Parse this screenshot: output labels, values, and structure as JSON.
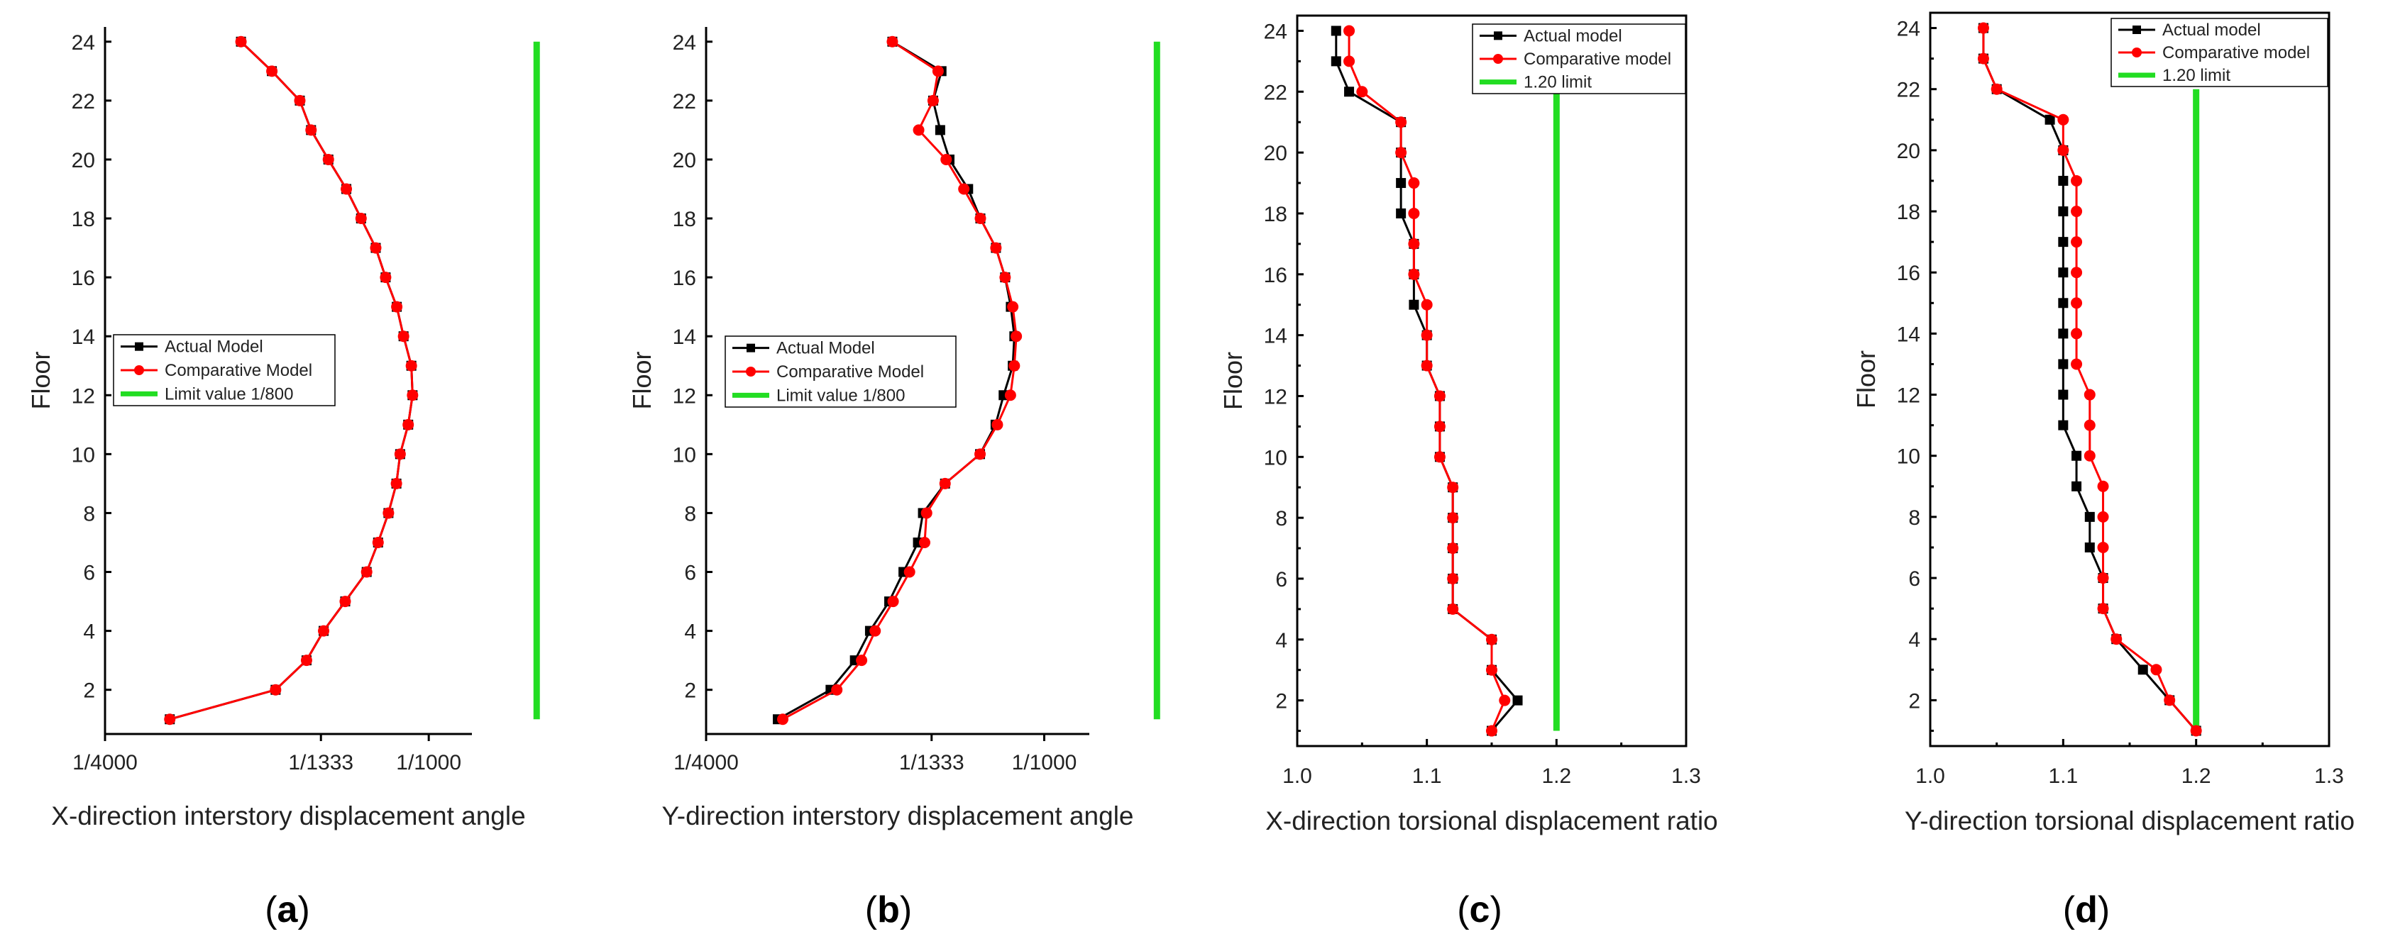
{
  "figure": {
    "captions": [
      "(a)",
      "(b)",
      "(c)",
      "(d)"
    ],
    "colors": {
      "actual": "#000000",
      "comparative": "#ff0000",
      "limit": "#22dd22"
    }
  },
  "chart_data": [
    {
      "type": "line",
      "caption": "(a)",
      "title": "",
      "xlabel": "X-direction interstory displacement angle",
      "ylabel": "Floor",
      "x_scale": "inverse-drift (1/N)",
      "xticks": [
        {
          "value": 4000,
          "label": "1/4000"
        },
        {
          "value": 1333,
          "label": "1/1333"
        },
        {
          "value": 1000,
          "label": "1/1000"
        }
      ],
      "xlim_inverse": [
        0.00025,
        0.0011
      ],
      "ylim": [
        0.5,
        24.5
      ],
      "yticks": [
        2,
        4,
        6,
        8,
        10,
        12,
        14,
        16,
        18,
        20,
        22,
        24
      ],
      "legend": {
        "position": "middle-left",
        "boxed": true,
        "entries": [
          "Actual Model",
          "Comparative Model",
          "Limit value 1/800"
        ]
      },
      "limit": {
        "label": "Limit value 1/800",
        "value_inverse": 800,
        "floors": [
          1,
          24
        ]
      },
      "series": [
        {
          "name": "Actual Model",
          "marker": "square",
          "floors": [
            1,
            2,
            3,
            4,
            5,
            6,
            7,
            8,
            9,
            10,
            11,
            12,
            13,
            14,
            15,
            16,
            17,
            18,
            19,
            20,
            21,
            22,
            23,
            24
          ],
          "values_inverse": [
            2500,
            1550,
            1395,
            1322,
            1240,
            1168,
            1133,
            1103,
            1081,
            1071,
            1050,
            1039,
            1042,
            1062,
            1080,
            1111,
            1140,
            1186,
            1236,
            1303,
            1375,
            1426,
            1571,
            1770
          ]
        },
        {
          "name": "Comparative Model",
          "marker": "circle",
          "floors": [
            1,
            2,
            3,
            4,
            5,
            6,
            7,
            8,
            9,
            10,
            11,
            12,
            13,
            14,
            15,
            16,
            17,
            18,
            19,
            20,
            21,
            22,
            23,
            24
          ],
          "values_inverse": [
            2500,
            1550,
            1395,
            1322,
            1240,
            1168,
            1133,
            1103,
            1081,
            1071,
            1050,
            1039,
            1042,
            1062,
            1080,
            1111,
            1140,
            1186,
            1236,
            1303,
            1375,
            1426,
            1571,
            1770
          ]
        }
      ]
    },
    {
      "type": "line",
      "caption": "(b)",
      "title": "",
      "xlabel": "Y-direction interstory displacement angle",
      "ylabel": "Floor",
      "x_scale": "inverse-drift (1/N)",
      "xticks": [
        {
          "value": 4000,
          "label": "1/4000"
        },
        {
          "value": 1333,
          "label": "1/1333"
        },
        {
          "value": 1000,
          "label": "1/1000"
        }
      ],
      "xlim_inverse": [
        0.00025,
        0.0011
      ],
      "ylim": [
        0.5,
        24.5
      ],
      "yticks": [
        2,
        4,
        6,
        8,
        10,
        12,
        14,
        16,
        18,
        20,
        22,
        24
      ],
      "legend": {
        "position": "middle-left",
        "boxed": true,
        "entries": [
          "Actual Model",
          "Comparative Model",
          "Limit value 1/800"
        ]
      },
      "limit": {
        "label": "Limit value 1/800",
        "value_inverse": 800,
        "floors": [
          1,
          24
        ]
      },
      "series": [
        {
          "name": "Actual Model",
          "marker": "square",
          "floors": [
            1,
            2,
            3,
            4,
            5,
            6,
            7,
            8,
            9,
            10,
            11,
            12,
            13,
            14,
            15,
            16,
            17,
            18,
            19,
            20,
            21,
            22,
            23,
            24
          ],
          "values_inverse": [
            2445,
            1901,
            1724,
            1630,
            1524,
            1454,
            1389,
            1368,
            1282,
            1166,
            1121,
            1099,
            1075,
            1071,
            1080,
            1095,
            1120,
            1165,
            1203,
            1266,
            1300,
            1327,
            1295,
            1508
          ]
        },
        {
          "name": "Comparative Model",
          "marker": "circle",
          "floors": [
            1,
            2,
            3,
            4,
            5,
            6,
            7,
            8,
            9,
            10,
            11,
            12,
            13,
            14,
            15,
            16,
            17,
            18,
            19,
            20,
            21,
            22,
            23,
            24
          ],
          "values_inverse": [
            2381,
            1852,
            1681,
            1600,
            1504,
            1426,
            1361,
            1353,
            1282,
            1166,
            1116,
            1081,
            1071,
            1066,
            1075,
            1095,
            1120,
            1165,
            1217,
            1278,
            1386,
            1327,
            1308,
            1508
          ]
        }
      ]
    },
    {
      "type": "line",
      "caption": "(c)",
      "title": "",
      "xlabel": "X-direction torsional displacement ratio",
      "ylabel": "Floor",
      "xlim": [
        1.0,
        1.3
      ],
      "xticks": [
        1.0,
        1.1,
        1.2,
        1.3
      ],
      "xtick_labels": [
        "1.0",
        "1.1",
        "1.2",
        "1.3"
      ],
      "ylim": [
        0.5,
        24.5
      ],
      "yticks": [
        2,
        4,
        6,
        8,
        10,
        12,
        14,
        16,
        18,
        20,
        22,
        24
      ],
      "legend": {
        "position": "top-right",
        "boxed": true,
        "entries": [
          "Actual model",
          "Comparative model",
          "1.20  limit"
        ]
      },
      "limit": {
        "label": "1.20  limit",
        "value": 1.2,
        "floors": [
          1,
          22
        ]
      },
      "series": [
        {
          "name": "Actual model",
          "marker": "square",
          "floors": [
            1,
            2,
            3,
            4,
            5,
            6,
            7,
            8,
            9,
            10,
            11,
            12,
            13,
            14,
            15,
            16,
            17,
            18,
            19,
            20,
            21,
            22,
            23,
            24
          ],
          "values": [
            1.15,
            1.17,
            1.15,
            1.15,
            1.12,
            1.12,
            1.12,
            1.12,
            1.12,
            1.11,
            1.11,
            1.11,
            1.1,
            1.1,
            1.09,
            1.09,
            1.09,
            1.08,
            1.08,
            1.08,
            1.08,
            1.04,
            1.03,
            1.03
          ]
        },
        {
          "name": "Comparative model",
          "marker": "circle",
          "floors": [
            1,
            2,
            3,
            4,
            5,
            6,
            7,
            8,
            9,
            10,
            11,
            12,
            13,
            14,
            15,
            16,
            17,
            18,
            19,
            20,
            21,
            22,
            23,
            24
          ],
          "values": [
            1.15,
            1.16,
            1.15,
            1.15,
            1.12,
            1.12,
            1.12,
            1.12,
            1.12,
            1.11,
            1.11,
            1.11,
            1.1,
            1.1,
            1.1,
            1.09,
            1.09,
            1.09,
            1.09,
            1.08,
            1.08,
            1.05,
            1.04,
            1.04
          ]
        }
      ]
    },
    {
      "type": "line",
      "caption": "(d)",
      "title": "",
      "xlabel": "Y-direction torsional displacement ratio",
      "ylabel": "Floor",
      "xlim": [
        1.0,
        1.3
      ],
      "xticks": [
        1.0,
        1.1,
        1.2,
        1.3
      ],
      "xtick_labels": [
        "1.0",
        "1.1",
        "1.2",
        "1.3"
      ],
      "ylim": [
        0.5,
        24.5
      ],
      "yticks": [
        2,
        4,
        6,
        8,
        10,
        12,
        14,
        16,
        18,
        20,
        22,
        24
      ],
      "legend": {
        "position": "top-right",
        "boxed": true,
        "entries": [
          "Actual model",
          "Comparative model",
          "1.20  limit"
        ]
      },
      "limit": {
        "label": "1.20  limit",
        "value": 1.2,
        "floors": [
          1,
          22
        ]
      },
      "series": [
        {
          "name": "Actual model",
          "marker": "square",
          "floors": [
            1,
            2,
            3,
            4,
            5,
            6,
            7,
            8,
            9,
            10,
            11,
            12,
            13,
            14,
            15,
            16,
            17,
            18,
            19,
            20,
            21,
            22,
            23,
            24
          ],
          "values": [
            1.2,
            1.18,
            1.16,
            1.14,
            1.13,
            1.13,
            1.12,
            1.12,
            1.11,
            1.11,
            1.1,
            1.1,
            1.1,
            1.1,
            1.1,
            1.1,
            1.1,
            1.1,
            1.1,
            1.1,
            1.09,
            1.05,
            1.04,
            1.04
          ]
        },
        {
          "name": "Comparative model",
          "marker": "circle",
          "floors": [
            1,
            2,
            3,
            4,
            5,
            6,
            7,
            8,
            9,
            10,
            11,
            12,
            13,
            14,
            15,
            16,
            17,
            18,
            19,
            20,
            21,
            22,
            23,
            24
          ],
          "values": [
            1.2,
            1.18,
            1.17,
            1.14,
            1.13,
            1.13,
            1.13,
            1.13,
            1.13,
            1.12,
            1.12,
            1.12,
            1.11,
            1.11,
            1.11,
            1.11,
            1.11,
            1.11,
            1.11,
            1.1,
            1.1,
            1.05,
            1.04,
            1.04
          ]
        }
      ]
    }
  ]
}
